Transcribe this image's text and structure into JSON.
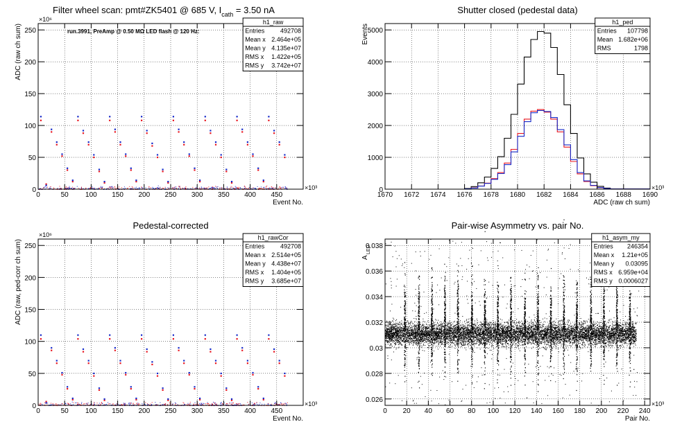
{
  "colors": {
    "red": "#e8141e",
    "blue": "#1428c8",
    "black": "#000000"
  },
  "chart_data": [
    {
      "type": "scatter",
      "title": "Filter wheel scan: pmt#ZK5401 @   685 V, I",
      "title_sub": "cath",
      "title_suffix": " = 3.50 nA",
      "annotation": "run.3991, PreAmp @ 0.50 MΩ LED flash @  120 Hz:",
      "xlabel": "Event No.",
      "ylabel": "ADC (raw ch sum)",
      "x_exponent": "×10³",
      "y_exponent": "×10⁶",
      "xlim": [
        0,
        500
      ],
      "ylim": [
        0,
        260
      ],
      "xticks": [
        0,
        50,
        100,
        150,
        200,
        250,
        300,
        350,
        400,
        450
      ],
      "yticks": [
        0,
        50,
        100,
        150,
        200,
        250
      ],
      "grid": true,
      "series": [
        {
          "color": "red",
          "x": [
            5,
            15,
            25,
            35,
            45,
            55,
            65,
            75,
            85,
            95,
            105,
            115,
            125,
            135,
            145,
            155,
            165,
            175,
            185,
            195,
            205,
            215,
            225,
            235,
            245,
            255,
            265,
            275,
            285,
            295,
            305,
            315,
            325,
            335,
            345,
            355,
            365,
            375,
            385,
            395,
            405,
            415,
            425,
            435,
            445,
            455,
            465
          ],
          "y": [
            108,
            8,
            90,
            70,
            52,
            30,
            12,
            108,
            88,
            70,
            50,
            28,
            10,
            108,
            90,
            70,
            52,
            30,
            12,
            108,
            88,
            68,
            50,
            28,
            10,
            108,
            90,
            70,
            52,
            30,
            12,
            108,
            88,
            70,
            50,
            28,
            10,
            108,
            90,
            70,
            52,
            30,
            12,
            108,
            88,
            70,
            50
          ]
        },
        {
          "color": "blue",
          "x": [
            5,
            15,
            25,
            35,
            45,
            55,
            65,
            75,
            85,
            95,
            105,
            115,
            125,
            135,
            145,
            155,
            165,
            175,
            185,
            195,
            205,
            215,
            225,
            235,
            245,
            255,
            265,
            275,
            285,
            295,
            305,
            315,
            325,
            335,
            345,
            355,
            365,
            375,
            385,
            395,
            405,
            415,
            425,
            435,
            445,
            455,
            465
          ],
          "y": [
            114,
            6,
            94,
            74,
            55,
            33,
            14,
            114,
            92,
            74,
            54,
            31,
            12,
            114,
            94,
            74,
            55,
            33,
            14,
            114,
            92,
            72,
            54,
            31,
            12,
            114,
            94,
            74,
            55,
            33,
            14,
            114,
            92,
            74,
            54,
            31,
            12,
            114,
            94,
            74,
            55,
            33,
            14,
            114,
            92,
            74,
            54
          ]
        }
      ],
      "stats": {
        "name": "h1_raw",
        "rows": [
          [
            "Entries",
            "492708"
          ],
          [
            "Mean x",
            "2.464e+05"
          ],
          [
            "Mean y",
            "4.135e+07"
          ],
          [
            "RMS x",
            "1.422e+05"
          ],
          [
            "RMS y",
            "3.742e+07"
          ]
        ]
      }
    },
    {
      "type": "line",
      "title": "Shutter closed (pedestal data)",
      "xlabel": "ADC (raw ch sum)",
      "ylabel": "Events",
      "x_exponent": "×10³",
      "xlim": [
        1670,
        1690
      ],
      "ylim": [
        0,
        5200
      ],
      "xticks": [
        1670,
        1672,
        1674,
        1676,
        1678,
        1680,
        1682,
        1684,
        1686,
        1688,
        1690
      ],
      "yticks": [
        0,
        1000,
        2000,
        3000,
        4000,
        5000
      ],
      "grid": true,
      "x": [
        1670,
        1676,
        1676.5,
        1677,
        1677.5,
        1678,
        1678.5,
        1679,
        1679.5,
        1680,
        1680.5,
        1681,
        1681.5,
        1682,
        1682.5,
        1683,
        1683.5,
        1684,
        1684.5,
        1685,
        1685.5,
        1686,
        1686.5,
        1687,
        1690
      ],
      "series": [
        {
          "color": "black",
          "values": [
            0,
            20,
            80,
            200,
            380,
            650,
            1020,
            1600,
            2350,
            3300,
            4150,
            4700,
            4950,
            4900,
            4450,
            3600,
            2650,
            1750,
            980,
            480,
            220,
            90,
            35,
            10,
            0
          ]
        },
        {
          "color": "red",
          "values": [
            0,
            10,
            40,
            100,
            190,
            330,
            520,
            820,
            1250,
            1750,
            2200,
            2450,
            2500,
            2420,
            2200,
            1800,
            1320,
            870,
            480,
            240,
            110,
            45,
            15,
            5,
            0
          ]
        },
        {
          "color": "blue",
          "values": [
            0,
            10,
            35,
            95,
            180,
            310,
            490,
            770,
            1170,
            1660,
            2120,
            2400,
            2470,
            2440,
            2250,
            1870,
            1390,
            930,
            520,
            260,
            120,
            50,
            18,
            6,
            0
          ]
        }
      ],
      "stats": {
        "name": "h1_ped",
        "rows": [
          [
            "Entries",
            "107798"
          ],
          [
            "Mean",
            "1.682e+06"
          ],
          [
            "RMS",
            "1798"
          ]
        ]
      }
    },
    {
      "type": "scatter",
      "title": "Pedestal-corrected",
      "xlabel": "Event No.",
      "ylabel": "ADC (raw, ped-corr ch sum)",
      "x_exponent": "×10³",
      "y_exponent": "×10⁶",
      "xlim": [
        0,
        500
      ],
      "ylim": [
        0,
        260
      ],
      "xticks": [
        0,
        50,
        100,
        150,
        200,
        250,
        300,
        350,
        400,
        450
      ],
      "yticks": [
        0,
        50,
        100,
        150,
        200,
        250
      ],
      "grid": true,
      "series": [
        {
          "color": "red",
          "x": [
            5,
            15,
            25,
            35,
            45,
            55,
            65,
            75,
            85,
            95,
            105,
            115,
            125,
            135,
            145,
            155,
            165,
            175,
            185,
            195,
            205,
            215,
            225,
            235,
            245,
            255,
            265,
            275,
            285,
            295,
            305,
            315,
            325,
            335,
            345,
            355,
            365,
            375,
            385,
            395,
            405,
            415,
            425,
            435,
            445,
            455,
            465
          ],
          "y": [
            104,
            6,
            86,
            66,
            48,
            26,
            9,
            104,
            84,
            66,
            46,
            24,
            8,
            104,
            86,
            66,
            48,
            26,
            9,
            104,
            84,
            64,
            46,
            24,
            8,
            104,
            86,
            66,
            48,
            26,
            9,
            104,
            84,
            66,
            46,
            24,
            8,
            104,
            86,
            66,
            48,
            26,
            9,
            104,
            84,
            66,
            46
          ]
        },
        {
          "color": "blue",
          "x": [
            5,
            15,
            25,
            35,
            45,
            55,
            65,
            75,
            85,
            95,
            105,
            115,
            125,
            135,
            145,
            155,
            165,
            175,
            185,
            195,
            205,
            215,
            225,
            235,
            245,
            255,
            265,
            275,
            285,
            295,
            305,
            315,
            325,
            335,
            345,
            355,
            365,
            375,
            385,
            395,
            405,
            415,
            425,
            435,
            445,
            455,
            465
          ],
          "y": [
            110,
            4,
            90,
            70,
            51,
            29,
            11,
            110,
            88,
            70,
            50,
            27,
            10,
            110,
            90,
            70,
            51,
            29,
            11,
            110,
            88,
            68,
            50,
            27,
            10,
            110,
            90,
            70,
            51,
            29,
            11,
            110,
            88,
            70,
            50,
            27,
            10,
            110,
            90,
            70,
            51,
            29,
            11,
            110,
            88,
            70,
            50
          ]
        }
      ],
      "stats": {
        "name": "h1_rawCor",
        "rows": [
          [
            "Entries",
            "492708"
          ],
          [
            "Mean x",
            "2.514e+05"
          ],
          [
            "Mean y",
            "4.438e+07"
          ],
          [
            "RMS x",
            "1.404e+05"
          ],
          [
            "RMS y",
            "3.685e+07"
          ]
        ]
      }
    },
    {
      "type": "scatter",
      "title": "Pair-wise Asymmetry vs. pair No.",
      "xlabel": "Pair No.",
      "ylabel": "A",
      "ylabel_sub": "LED",
      "x_exponent": "×10³",
      "xlim": [
        0,
        245
      ],
      "ylim": [
        0.0255,
        0.0385
      ],
      "xticks": [
        0,
        20,
        40,
        60,
        80,
        100,
        120,
        140,
        160,
        180,
        200,
        220,
        240
      ],
      "yticks": [
        0.026,
        0.028,
        0.03,
        0.032,
        0.034,
        0.036,
        0.038
      ],
      "ytick_labels": [
        "0.026",
        "0.028",
        "0.03",
        "0.032",
        "0.034",
        "0.036",
        "0.038"
      ],
      "grid": true,
      "band_center": 0.0311,
      "band_halfwidth": 0.0006,
      "spike_x": [
        18,
        31,
        43,
        55,
        67,
        80,
        92,
        104,
        116,
        129,
        141,
        153,
        165,
        177,
        190,
        202,
        214,
        226
      ],
      "series": [
        {
          "color": "black"
        }
      ],
      "stats": {
        "name": "h1_asym_my",
        "rows": [
          [
            "Entries",
            "246354"
          ],
          [
            "Mean x",
            "1.21e+05"
          ],
          [
            "Mean y",
            "0.03095"
          ],
          [
            "RMS x",
            "6.959e+04"
          ],
          [
            "RMS y",
            "0.0006027"
          ]
        ]
      }
    }
  ]
}
